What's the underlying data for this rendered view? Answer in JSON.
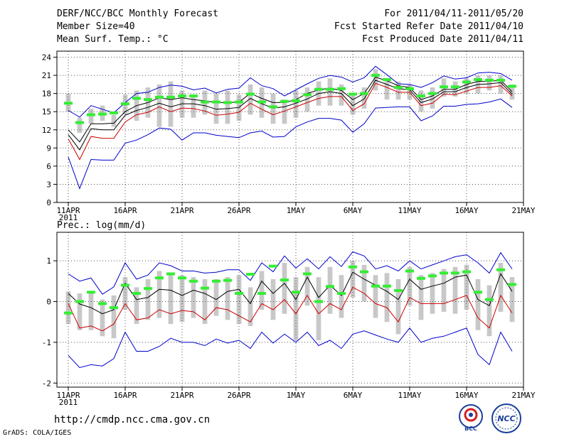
{
  "header": {
    "title": "DERF/NCC/BCC Monthly Forecast",
    "member_size": "Member Size=40",
    "variable": "Mean Surf. Temp.: °C",
    "forecast_range": "For 2011/04/11-2011/05/20",
    "started_refer": "Fcst Started Refer Date 2011/04/10",
    "produced": "Fcst Produced Date 2011/04/11"
  },
  "footer": {
    "url": "http://cmdp.ncc.cma.gov.cn",
    "credit": "GrADS: COLA/IGES",
    "logo_bcc": "BCC",
    "logo_ncc": "NCC"
  },
  "colors": {
    "envelope": "#0000cc",
    "ensemble_mean": "#000000",
    "spread": "#cc0000",
    "box": "#c8c8c8",
    "observed": "#33ee33",
    "grid": "#555555"
  },
  "chart_data": [
    {
      "type": "line",
      "title": "Mean Surf. Temp.: °C",
      "x_labels": [
        {
          "day": 0,
          "label": "11APR"
        },
        {
          "day": 5,
          "label": "16APR"
        },
        {
          "day": 10,
          "label": "21APR"
        },
        {
          "day": 15,
          "label": "26APR"
        },
        {
          "day": 20,
          "label": "1MAY"
        },
        {
          "day": 25,
          "label": "6MAY"
        },
        {
          "day": 30,
          "label": "11MAY"
        },
        {
          "day": 35,
          "label": "16MAY"
        },
        {
          "day": 40,
          "label": "21MAY"
        }
      ],
      "year_label": "2011",
      "xlim": [
        -1,
        40
      ],
      "ylim": [
        0,
        25
      ],
      "yticks": [
        0,
        3,
        6,
        9,
        12,
        15,
        18,
        21,
        24
      ],
      "days": [
        0,
        1,
        2,
        3,
        4,
        5,
        6,
        7,
        8,
        9,
        10,
        11,
        12,
        13,
        14,
        15,
        16,
        17,
        18,
        19,
        20,
        21,
        22,
        23,
        24,
        25,
        26,
        27,
        28,
        29,
        30,
        31,
        32,
        33,
        34,
        35,
        36,
        37,
        38,
        39
      ],
      "series": [
        {
          "name": "max",
          "color": "#0000cc",
          "values": [
            15.2,
            14.1,
            16.0,
            15.4,
            14.8,
            16.5,
            18.0,
            18.2,
            19.0,
            19.4,
            19.2,
            18.6,
            18.9,
            18.1,
            18.7,
            18.9,
            20.6,
            19.3,
            18.8,
            17.6,
            18.6,
            19.6,
            20.5,
            21.0,
            20.7,
            19.9,
            20.6,
            22.5,
            21.1,
            19.6,
            19.5,
            19.0,
            19.8,
            20.9,
            20.4,
            20.6,
            21.4,
            21.5,
            21.3,
            20.2
          ]
        },
        {
          "name": "upper",
          "color": "#000000",
          "values": [
            12.0,
            10.0,
            13.0,
            13.0,
            13.1,
            15.0,
            16.0,
            16.5,
            17.3,
            17.0,
            17.3,
            17.0,
            16.8,
            16.5,
            16.5,
            16.6,
            18.0,
            17.2,
            16.5,
            16.5,
            17.0,
            18.0,
            18.6,
            18.9,
            18.5,
            17.0,
            18.0,
            20.7,
            20.1,
            19.3,
            19.0,
            17.0,
            17.6,
            18.7,
            18.7,
            19.5,
            20.0,
            20.0,
            20.2,
            18.3
          ]
        },
        {
          "name": "mean",
          "color": "#000000",
          "values": [
            11.2,
            8.7,
            12.2,
            12.0,
            12.0,
            14.4,
            15.2,
            15.7,
            16.4,
            15.8,
            16.3,
            16.3,
            16.0,
            15.4,
            15.5,
            15.7,
            17.2,
            16.3,
            15.6,
            15.8,
            16.4,
            17.1,
            18.0,
            18.3,
            18.0,
            16.0,
            17.1,
            20.2,
            19.5,
            18.8,
            18.6,
            16.5,
            17.1,
            18.3,
            18.3,
            19.0,
            19.5,
            19.6,
            19.8,
            17.9
          ]
        },
        {
          "name": "lower",
          "color": "#cc0000",
          "values": [
            10.5,
            7.1,
            10.9,
            10.6,
            10.6,
            13.3,
            14.5,
            14.9,
            15.8,
            15.0,
            15.6,
            15.5,
            15.1,
            14.4,
            14.6,
            14.9,
            16.4,
            15.4,
            14.5,
            15.1,
            15.8,
            16.5,
            17.2,
            17.5,
            17.5,
            15.2,
            16.3,
            19.7,
            19.0,
            18.2,
            18.2,
            16.0,
            16.4,
            17.9,
            17.8,
            18.4,
            19.0,
            19.0,
            19.3,
            17.6
          ]
        },
        {
          "name": "min",
          "color": "#0000cc",
          "values": [
            7.5,
            2.3,
            7.1,
            7.0,
            7.0,
            9.8,
            10.3,
            11.2,
            12.3,
            12.1,
            10.3,
            11.5,
            11.5,
            11.1,
            10.9,
            10.7,
            11.5,
            11.8,
            10.8,
            10.9,
            12.5,
            13.3,
            13.9,
            13.9,
            13.6,
            11.6,
            13.0,
            15.6,
            15.7,
            15.8,
            15.8,
            13.5,
            14.3,
            15.9,
            15.9,
            16.2,
            16.3,
            16.6,
            17.1,
            15.7
          ]
        }
      ],
      "boxes": {
        "days": [
          0,
          1,
          2,
          3,
          4,
          5,
          6,
          7,
          8,
          9,
          10,
          11,
          12,
          13,
          14,
          15,
          16,
          17,
          18,
          19,
          20,
          21,
          22,
          23,
          24,
          25,
          26,
          27,
          28,
          29,
          30,
          31,
          32,
          33,
          34,
          35,
          36,
          37,
          38,
          39
        ],
        "high": [
          18.0,
          14.0,
          15.5,
          16.0,
          14.5,
          17.8,
          18.5,
          19.0,
          19.5,
          20.0,
          18.5,
          17.5,
          18.5,
          18.0,
          18.5,
          17.8,
          19.5,
          19.0,
          18.0,
          17.0,
          18.5,
          19.0,
          20.0,
          20.5,
          19.5,
          18.0,
          19.0,
          22.0,
          20.5,
          20.0,
          19.5,
          18.5,
          19.0,
          20.5,
          20.0,
          20.5,
          21.0,
          21.0,
          21.0,
          19.5
        ],
        "low": [
          15.0,
          11.5,
          13.0,
          13.5,
          12.5,
          14.5,
          13.5,
          14.0,
          12.5,
          12.5,
          14.0,
          14.0,
          14.5,
          13.0,
          13.0,
          13.5,
          14.5,
          14.0,
          13.0,
          13.0,
          14.0,
          15.0,
          16.0,
          16.0,
          16.0,
          14.5,
          15.5,
          18.5,
          17.0,
          17.0,
          17.0,
          15.0,
          15.5,
          17.5,
          17.5,
          18.0,
          18.0,
          18.5,
          18.0,
          17.0
        ]
      },
      "observed": [
        16.4,
        13.2,
        14.5,
        14.6,
        14.8,
        16.3,
        17.2,
        17.0,
        17.4,
        17.4,
        17.6,
        17.6,
        16.6,
        16.6,
        16.5,
        16.6,
        17.9,
        16.6,
        15.8,
        16.7,
        16.8,
        17.8,
        18.7,
        18.7,
        18.8,
        17.9,
        18.0,
        21.0,
        20.3,
        19.0,
        18.8,
        17.6,
        18.0,
        19.1,
        19.1,
        19.9,
        20.3,
        20.2,
        20.2,
        19.2
      ]
    },
    {
      "type": "line",
      "title": "Prec.: log(mm/d)",
      "x_labels": [
        {
          "day": 0,
          "label": "11APR"
        },
        {
          "day": 5,
          "label": "16APR"
        },
        {
          "day": 10,
          "label": "21APR"
        },
        {
          "day": 15,
          "label": "26APR"
        },
        {
          "day": 20,
          "label": "1MAY"
        },
        {
          "day": 25,
          "label": "6MAY"
        },
        {
          "day": 30,
          "label": "11MAY"
        },
        {
          "day": 35,
          "label": "16MAY"
        },
        {
          "day": 40,
          "label": "21MAY"
        }
      ],
      "year_label": "2011",
      "xlim": [
        -1,
        40
      ],
      "ylim": [
        -2.1,
        1.7
      ],
      "yticks": [
        -2,
        -1,
        0,
        1
      ],
      "days": [
        0,
        1,
        2,
        3,
        4,
        5,
        6,
        7,
        8,
        9,
        10,
        11,
        12,
        13,
        14,
        15,
        16,
        17,
        18,
        19,
        20,
        21,
        22,
        23,
        24,
        25,
        26,
        27,
        28,
        29,
        30,
        31,
        32,
        33,
        34,
        35,
        36,
        37,
        38,
        39
      ],
      "series": [
        {
          "name": "max",
          "color": "#0000cc",
          "values": [
            0.68,
            0.5,
            0.58,
            0.18,
            0.36,
            0.95,
            0.55,
            0.65,
            0.95,
            0.88,
            0.75,
            0.75,
            0.7,
            0.72,
            0.78,
            0.78,
            0.52,
            0.95,
            0.73,
            1.12,
            0.82,
            1.05,
            0.8,
            1.1,
            0.86,
            1.22,
            1.12,
            0.8,
            0.88,
            0.75,
            1.0,
            0.8,
            0.9,
            1.0,
            1.1,
            1.15,
            0.95,
            0.7,
            1.2,
            0.8
          ]
        },
        {
          "name": "mean",
          "color": "#000000",
          "values": [
            0.2,
            -0.06,
            -0.15,
            -0.3,
            -0.2,
            0.45,
            0.05,
            0.1,
            0.3,
            0.28,
            0.15,
            0.28,
            0.2,
            0.05,
            0.25,
            0.3,
            -0.05,
            0.5,
            0.2,
            0.45,
            0.05,
            0.6,
            0.1,
            0.4,
            0.15,
            0.72,
            0.55,
            0.4,
            0.25,
            0.05,
            0.55,
            0.3,
            0.38,
            0.45,
            0.6,
            0.65,
            0.05,
            -0.1,
            0.68,
            0.25
          ]
        },
        {
          "name": "spread",
          "color": "#cc0000",
          "values": [
            -0.05,
            -0.65,
            -0.6,
            -0.72,
            -0.55,
            -0.05,
            -0.45,
            -0.4,
            -0.2,
            -0.3,
            -0.22,
            -0.25,
            -0.45,
            -0.15,
            -0.2,
            -0.35,
            -0.5,
            -0.05,
            -0.2,
            0.05,
            -0.3,
            0.15,
            -0.3,
            -0.05,
            -0.2,
            0.35,
            0.2,
            -0.05,
            -0.15,
            -0.5,
            0.1,
            -0.05,
            -0.05,
            -0.05,
            0.05,
            0.15,
            -0.4,
            -0.65,
            0.15,
            -0.28
          ]
        },
        {
          "name": "min",
          "color": "#0000cc",
          "values": [
            -1.32,
            -1.62,
            -1.55,
            -1.58,
            -1.4,
            -0.75,
            -1.22,
            -1.22,
            -1.1,
            -0.9,
            -1.0,
            -1.0,
            -1.08,
            -0.92,
            -1.02,
            -0.95,
            -1.15,
            -0.75,
            -1.02,
            -0.8,
            -1.0,
            -0.75,
            -1.08,
            -0.95,
            -1.15,
            -0.8,
            -0.72,
            -0.82,
            -0.92,
            -1.0,
            -0.65,
            -1.0,
            -0.9,
            -0.85,
            -0.75,
            -0.65,
            -1.3,
            -1.55,
            -0.75,
            -1.22
          ]
        }
      ],
      "boxes": {
        "days": [
          0,
          1,
          2,
          3,
          4,
          5,
          6,
          7,
          8,
          9,
          10,
          11,
          12,
          13,
          14,
          15,
          16,
          17,
          18,
          19,
          20,
          21,
          22,
          23,
          24,
          25,
          26,
          27,
          28,
          29,
          30,
          31,
          32,
          33,
          34,
          35,
          36,
          37,
          38,
          39
        ],
        "high": [
          0.25,
          0.2,
          0.25,
          0.05,
          0.15,
          0.6,
          0.35,
          0.55,
          0.75,
          0.7,
          0.65,
          0.6,
          0.55,
          0.55,
          0.6,
          0.65,
          0.35,
          0.75,
          0.55,
          0.95,
          0.6,
          0.85,
          0.6,
          0.85,
          0.65,
          1.0,
          0.9,
          0.65,
          0.7,
          0.55,
          0.85,
          0.65,
          0.7,
          0.8,
          0.85,
          0.9,
          0.55,
          0.4,
          0.95,
          0.6
        ],
        "low": [
          -0.55,
          -0.7,
          -0.7,
          -0.85,
          -0.9,
          -0.2,
          -0.55,
          -0.45,
          -0.4,
          -0.55,
          -0.5,
          -0.4,
          -0.55,
          -0.35,
          -0.45,
          -0.55,
          -0.6,
          -0.2,
          -0.45,
          -0.3,
          -0.95,
          -0.1,
          -0.95,
          -0.3,
          -0.4,
          0.1,
          0.0,
          -0.4,
          -0.5,
          -0.8,
          -0.1,
          -0.45,
          -0.3,
          -0.25,
          -0.3,
          -0.2,
          -0.7,
          -0.85,
          -0.25,
          -0.5
        ]
      },
      "observed": [
        -0.28,
        0.0,
        0.23,
        -0.05,
        -0.15,
        0.4,
        0.2,
        0.32,
        0.58,
        0.68,
        0.58,
        0.5,
        0.33,
        0.5,
        0.52,
        0.2,
        0.67,
        0.2,
        0.87,
        0.53,
        0.23,
        0.68,
        0.0,
        0.37,
        0.2,
        0.85,
        0.73,
        0.38,
        0.38,
        0.27,
        0.75,
        0.57,
        0.63,
        0.7,
        0.7,
        0.73,
        0.23,
        0.05,
        0.78,
        0.42
      ]
    }
  ]
}
